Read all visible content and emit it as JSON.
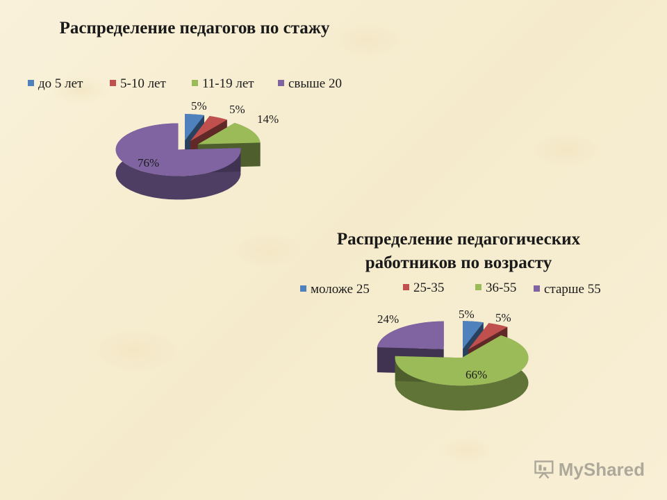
{
  "chart_data": [
    {
      "type": "pie",
      "title": "Распределение педагогов по стажу",
      "categories": [
        "до 5 лет",
        "5-10 лет",
        "11-19 лет",
        "свыше 20"
      ],
      "values": [
        5,
        5,
        14,
        76
      ],
      "labels": [
        "5%",
        "5%",
        "14%",
        "76%"
      ],
      "colors": [
        "#4f81bd",
        "#c0504d",
        "#9bbb59",
        "#8064a2"
      ],
      "legend": "top",
      "style": "3d-exploded"
    },
    {
      "type": "pie",
      "title": "Распределение педагогических работников по  возрасту",
      "categories": [
        "моложе 25",
        "25-35",
        "36-55",
        "старше 55"
      ],
      "values": [
        5,
        5,
        66,
        24
      ],
      "labels": [
        "5%",
        "5%",
        "66%",
        "24%"
      ],
      "colors": [
        "#4f81bd",
        "#c0504d",
        "#9bbb59",
        "#8064a2"
      ],
      "legend": "top",
      "style": "3d-exploded"
    }
  ],
  "watermark": {
    "text": "MyShared"
  }
}
